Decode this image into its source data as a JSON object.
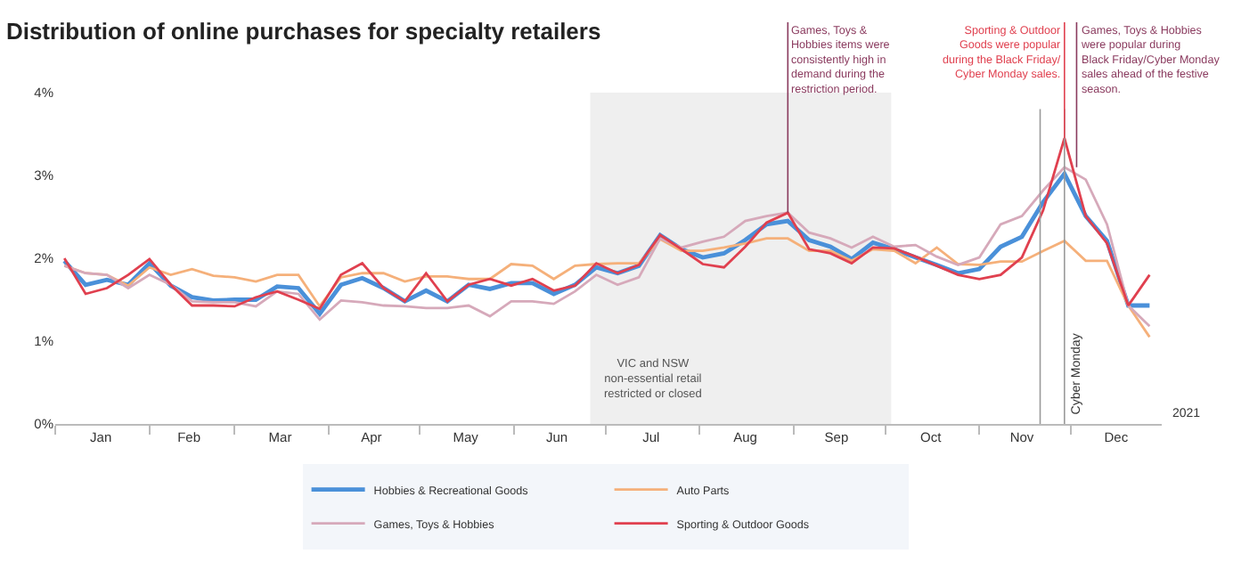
{
  "chart_data": {
    "type": "line",
    "title": "Distribution of online purchases for specialty retailers",
    "x": [
      "2021-01-04",
      "2021-01-11",
      "2021-01-18",
      "2021-01-25",
      "2021-02-01",
      "2021-02-08",
      "2021-02-15",
      "2021-02-22",
      "2021-03-01",
      "2021-03-08",
      "2021-03-15",
      "2021-03-22",
      "2021-03-29",
      "2021-04-05",
      "2021-04-12",
      "2021-04-19",
      "2021-04-26",
      "2021-05-03",
      "2021-05-10",
      "2021-05-17",
      "2021-05-24",
      "2021-05-31",
      "2021-06-07",
      "2021-06-14",
      "2021-06-21",
      "2021-06-28",
      "2021-07-05",
      "2021-07-12",
      "2021-07-19",
      "2021-07-26",
      "2021-08-02",
      "2021-08-09",
      "2021-08-16",
      "2021-08-23",
      "2021-08-30",
      "2021-09-06",
      "2021-09-13",
      "2021-09-20",
      "2021-09-27",
      "2021-10-04",
      "2021-10-11",
      "2021-10-18",
      "2021-10-25",
      "2021-11-01",
      "2021-11-08",
      "2021-11-15",
      "2021-11-22",
      "2021-11-29",
      "2021-12-06",
      "2021-12-13",
      "2021-12-20",
      "2021-12-27"
    ],
    "series": [
      {
        "name": "Hobbies & Recreational Goods",
        "color": "#4a90d9",
        "values": [
          1.97,
          1.68,
          1.74,
          1.68,
          1.94,
          1.67,
          1.53,
          1.49,
          1.5,
          1.5,
          1.66,
          1.64,
          1.33,
          1.68,
          1.76,
          1.64,
          1.48,
          1.61,
          1.48,
          1.68,
          1.63,
          1.7,
          1.7,
          1.57,
          1.68,
          1.89,
          1.82,
          1.91,
          2.28,
          2.11,
          2.01,
          2.06,
          2.22,
          2.41,
          2.45,
          2.22,
          2.14,
          1.99,
          2.19,
          2.11,
          2.01,
          1.92,
          1.82,
          1.87,
          2.14,
          2.26,
          2.68,
          3.02,
          2.51,
          2.21,
          1.43,
          1.43
        ]
      },
      {
        "name": "Auto Parts",
        "color": "#f5b07a",
        "values": [
          1.91,
          1.82,
          1.8,
          1.67,
          1.89,
          1.8,
          1.87,
          1.79,
          1.77,
          1.72,
          1.8,
          1.8,
          1.42,
          1.77,
          1.82,
          1.82,
          1.72,
          1.78,
          1.78,
          1.75,
          1.75,
          1.93,
          1.91,
          1.75,
          1.91,
          1.93,
          1.94,
          1.94,
          2.23,
          2.09,
          2.09,
          2.13,
          2.18,
          2.24,
          2.24,
          2.09,
          2.09,
          1.97,
          2.11,
          2.09,
          1.94,
          2.13,
          1.93,
          1.92,
          1.96,
          1.96,
          2.09,
          2.21,
          1.97,
          1.97,
          1.43,
          1.05
        ]
      },
      {
        "name": "Games, Toys & Hobbies",
        "color": "#d6a9ba",
        "values": [
          1.91,
          1.82,
          1.8,
          1.64,
          1.8,
          1.68,
          1.48,
          1.47,
          1.47,
          1.42,
          1.6,
          1.57,
          1.26,
          1.49,
          1.47,
          1.43,
          1.42,
          1.4,
          1.4,
          1.43,
          1.3,
          1.48,
          1.48,
          1.45,
          1.6,
          1.8,
          1.68,
          1.77,
          2.24,
          2.13,
          2.2,
          2.26,
          2.45,
          2.51,
          2.55,
          2.31,
          2.24,
          2.13,
          2.26,
          2.14,
          2.16,
          2.02,
          1.92,
          2.01,
          2.41,
          2.51,
          2.82,
          3.1,
          2.95,
          2.41,
          1.43,
          1.18
        ]
      },
      {
        "name": "Sporting & Outdoor Goods",
        "color": "#e0404f",
        "values": [
          2.0,
          1.57,
          1.64,
          1.8,
          1.99,
          1.68,
          1.43,
          1.43,
          1.42,
          1.53,
          1.6,
          1.5,
          1.39,
          1.8,
          1.94,
          1.64,
          1.48,
          1.82,
          1.48,
          1.68,
          1.75,
          1.67,
          1.75,
          1.61,
          1.67,
          1.94,
          1.82,
          1.92,
          2.28,
          2.11,
          1.93,
          1.89,
          2.14,
          2.43,
          2.55,
          2.11,
          2.06,
          1.94,
          2.13,
          2.12,
          2.02,
          1.91,
          1.8,
          1.75,
          1.8,
          2.01,
          2.58,
          3.45,
          2.51,
          2.18,
          1.43,
          1.8
        ]
      }
    ],
    "xlim": [
      "2021-01-01",
      "2021-12-31"
    ],
    "xticks": [
      {
        "value": "2021-01-16",
        "label": "Jan"
      },
      {
        "value": "2021-02-14",
        "label": "Feb"
      },
      {
        "value": "2021-03-16",
        "label": "Mar"
      },
      {
        "value": "2021-04-15",
        "label": "Apr"
      },
      {
        "value": "2021-05-16",
        "label": "May"
      },
      {
        "value": "2021-06-15",
        "label": "Jun"
      },
      {
        "value": "2021-07-16",
        "label": "Jul"
      },
      {
        "value": "2021-08-16",
        "label": "Aug"
      },
      {
        "value": "2021-09-15",
        "label": "Sep"
      },
      {
        "value": "2021-10-16",
        "label": "Oct"
      },
      {
        "value": "2021-11-15",
        "label": "Nov"
      },
      {
        "value": "2021-12-16",
        "label": "Dec"
      },
      {
        "value": "2021-01-01",
        "label": null
      },
      {
        "value": "2021-02-01",
        "label": null
      },
      {
        "value": "2021-03-01",
        "label": null
      },
      {
        "value": "2021-04-01",
        "label": null
      },
      {
        "value": "2021-05-01",
        "label": null
      },
      {
        "value": "2021-06-01",
        "label": null
      },
      {
        "value": "2021-07-01",
        "label": null
      },
      {
        "value": "2021-08-01",
        "label": null
      },
      {
        "value": "2021-09-01",
        "label": null
      },
      {
        "value": "2021-10-01",
        "label": null
      },
      {
        "value": "2021-11-01",
        "label": null
      },
      {
        "value": "2021-12-01",
        "label": null
      }
    ],
    "ylim": [
      0,
      4
    ],
    "yticks": [
      {
        "value": 0,
        "label": "0%"
      },
      {
        "value": 1,
        "label": "1%"
      },
      {
        "value": 2,
        "label": "2%"
      },
      {
        "value": 3,
        "label": "3%"
      },
      {
        "value": 4,
        "label": "4%"
      }
    ],
    "grid": false,
    "legend": "bottom",
    "line_style": "solid",
    "marker": "none",
    "bands": [
      {
        "axis": "x",
        "from": "2021-06-26",
        "to": "2021-10-03",
        "label": "VIC and NSW non-essential retail restricted or closed",
        "color": "#efefef"
      }
    ],
    "ref_lines": [
      {
        "axis": "x",
        "value": "2021-11-21",
        "label": null,
        "color": "#9a9a9a"
      },
      {
        "axis": "x",
        "value": "2021-11-29",
        "label": "Cyber Monday",
        "color": "#9a9a9a"
      }
    ],
    "annotations": [
      {
        "text": "Games, Toys &\nHobbies items were\nconsistently high in\ndemand during the\nrestriction period.",
        "x": "2021-08-30",
        "y": 2.55
      },
      {
        "text": "Sporting & Outdoor\nGoods were popular\nduring the Black Friday/\nCyber Monday sales.",
        "x": "2021-11-29",
        "y": 3.45
      },
      {
        "text": "Games, Toys & Hobbies\nwere popular during\nBlack Friday/Cyber Monday\nsales ahead of the festive\nseason.",
        "x": "2021-12-03",
        "y": 3.1
      },
      "2021"
    ]
  }
}
